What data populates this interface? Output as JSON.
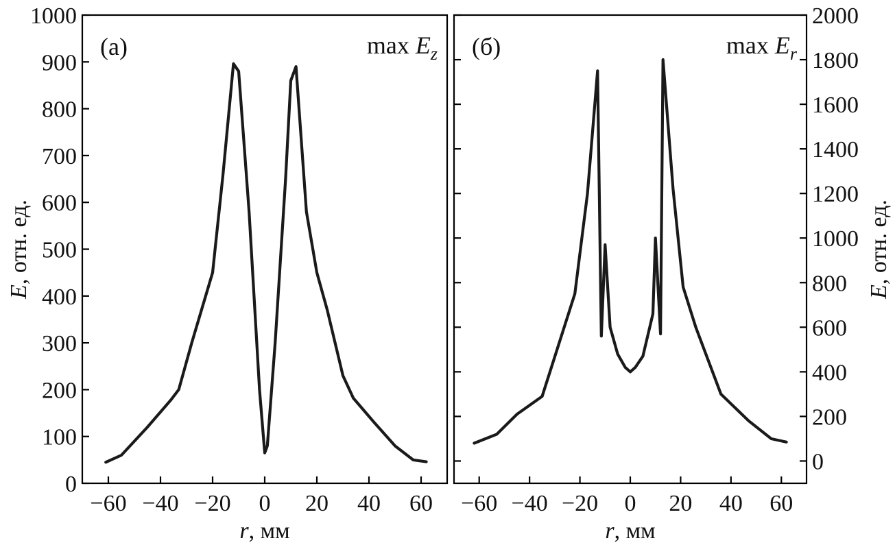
{
  "chart_data": [
    {
      "type": "line",
      "panel_label": "(a)",
      "annotation": {
        "prefix": "max ",
        "symbol": "E",
        "subscript": "z"
      },
      "xlabel": {
        "symbol": "r",
        "unit": ", мм"
      },
      "ylabel": {
        "symbol": "E",
        "unit": ", отн. ед."
      },
      "y_axis_side": "left",
      "xlim": [
        -70,
        70
      ],
      "ylim": [
        0,
        1000
      ],
      "xticks": [
        -60,
        -40,
        -20,
        0,
        20,
        40,
        60
      ],
      "yticks": [
        0,
        100,
        200,
        300,
        400,
        500,
        600,
        700,
        800,
        900,
        1000
      ],
      "series": [
        {
          "color": "#1a1a1a",
          "x": [
            -61,
            -55,
            -45,
            -36,
            -33,
            -28,
            -20,
            -16,
            -12,
            -10,
            -6,
            -2,
            0,
            1,
            4,
            8,
            10,
            12,
            16,
            20,
            24,
            30,
            34,
            42,
            50,
            57,
            62
          ],
          "y": [
            45,
            60,
            120,
            178,
            200,
            300,
            450,
            660,
            896,
            880,
            580,
            200,
            65,
            80,
            300,
            650,
            860,
            890,
            580,
            450,
            370,
            230,
            182,
            130,
            80,
            50,
            46
          ]
        }
      ]
    },
    {
      "type": "line",
      "panel_label": "(б)",
      "annotation": {
        "prefix": "max ",
        "symbol": "E",
        "subscript": "r"
      },
      "xlabel": {
        "symbol": "r",
        "unit": ", мм"
      },
      "ylabel": {
        "symbol": "E",
        "unit": ", отн. ед."
      },
      "y_axis_side": "right",
      "xlim": [
        -70,
        70
      ],
      "ylim": [
        -100,
        2000
      ],
      "xticks": [
        -60,
        -40,
        -20,
        0,
        20,
        40,
        60
      ],
      "yticks": [
        0,
        200,
        400,
        600,
        800,
        1000,
        1200,
        1400,
        1600,
        1800,
        2000
      ],
      "series": [
        {
          "color": "#1a1a1a",
          "x": [
            -62,
            -53,
            -45,
            -35,
            -22,
            -17,
            -13,
            -11.5,
            -10,
            -8,
            -5,
            -2,
            0,
            2,
            5,
            9,
            10,
            12,
            13,
            17,
            21,
            26,
            36,
            47,
            56,
            62
          ],
          "y": [
            80,
            120,
            210,
            290,
            750,
            1200,
            1750,
            560,
            970,
            600,
            480,
            420,
            400,
            420,
            470,
            660,
            1000,
            570,
            1800,
            1220,
            780,
            600,
            300,
            180,
            100,
            85
          ]
        }
      ]
    }
  ]
}
